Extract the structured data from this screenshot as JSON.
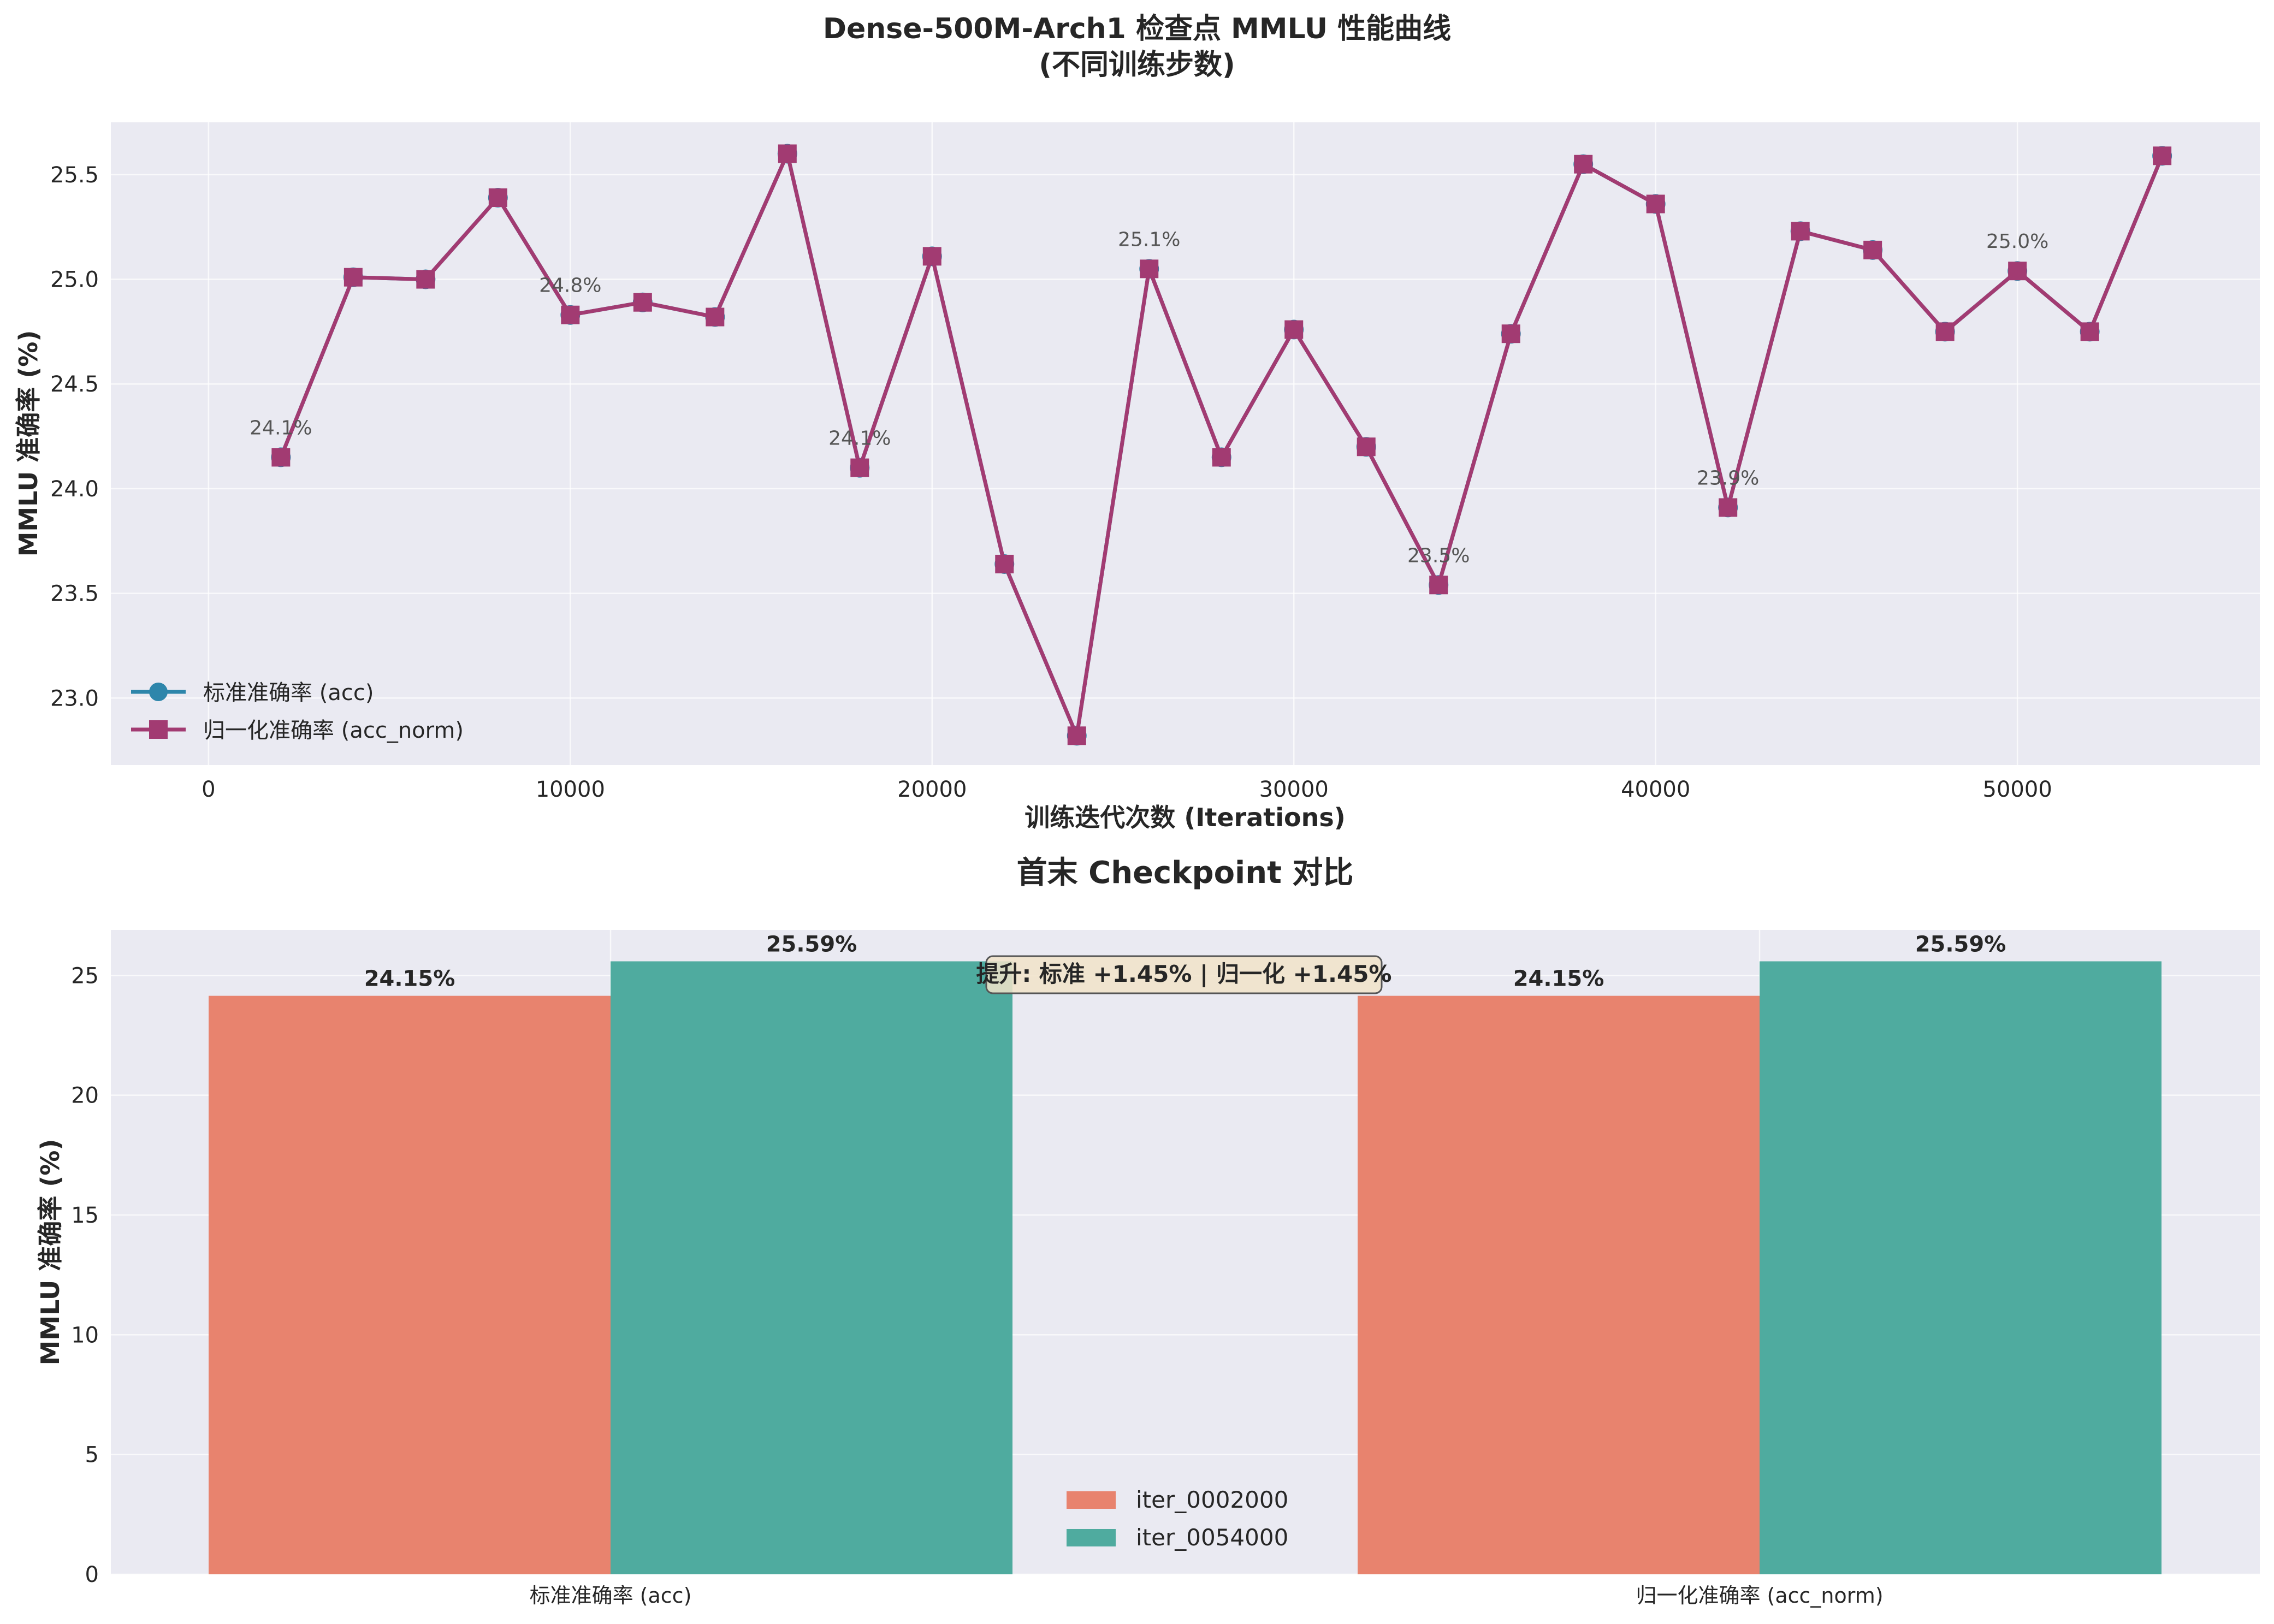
{
  "figure": {
    "title_line1": "Dense-500M-Arch1 检查点 MMLU 性能曲线",
    "title_line2": "(不同训练步数)"
  },
  "colors": {
    "acc_line": "#2e86ab",
    "acc_norm_line": "#a23b72",
    "bar_first": "#e8836e",
    "bar_last": "#4fab9f",
    "axes_bg": "#eaeaf2",
    "grid": "#ffffff",
    "text": "#262626",
    "annotation_text": "#555555",
    "note_box_fill": "#f1e3c9"
  },
  "chart_data": [
    {
      "type": "line",
      "title": "",
      "xlabel": "训练迭代次数 (Iterations)",
      "ylabel": "MMLU 准确率 (%)",
      "xlim": [
        -2700,
        56700
      ],
      "ylim": [
        22.68,
        25.75
      ],
      "xticks": [
        0,
        10000,
        20000,
        30000,
        40000,
        50000
      ],
      "yticks": [
        23.0,
        23.5,
        24.0,
        24.5,
        25.0,
        25.5
      ],
      "ytick_labels": [
        "23.0",
        "23.5",
        "24.0",
        "24.5",
        "25.0",
        "25.5"
      ],
      "grid": true,
      "legend_position": "lower-left",
      "x": [
        2000,
        4000,
        6000,
        8000,
        10000,
        12000,
        14000,
        16000,
        18000,
        20000,
        22000,
        24000,
        26000,
        28000,
        30000,
        32000,
        34000,
        36000,
        38000,
        40000,
        42000,
        44000,
        46000,
        48000,
        50000,
        52000,
        54000
      ],
      "series": [
        {
          "name": "标准准确率 (acc)",
          "marker": "circle",
          "values": [
            24.15,
            25.01,
            25.0,
            25.39,
            24.83,
            24.89,
            24.82,
            25.6,
            24.1,
            25.11,
            23.64,
            22.82,
            25.05,
            24.15,
            24.76,
            24.2,
            23.54,
            24.74,
            25.55,
            25.36,
            23.91,
            25.23,
            25.14,
            24.75,
            25.04,
            24.75,
            25.59
          ]
        },
        {
          "name": "归一化准确率 (acc_norm)",
          "marker": "square",
          "values": [
            24.15,
            25.01,
            25.0,
            25.39,
            24.83,
            24.89,
            24.82,
            25.6,
            24.1,
            25.11,
            23.64,
            22.82,
            25.05,
            24.15,
            24.76,
            24.2,
            23.54,
            24.74,
            25.55,
            25.36,
            23.91,
            25.23,
            25.14,
            24.75,
            25.04,
            24.75,
            25.59
          ]
        }
      ],
      "annotations": [
        {
          "x": 2000,
          "y": 24.15,
          "text": "24.1%"
        },
        {
          "x": 10000,
          "y": 24.83,
          "text": "24.8%"
        },
        {
          "x": 18000,
          "y": 24.1,
          "text": "24.1%"
        },
        {
          "x": 26000,
          "y": 25.05,
          "text": "25.1%"
        },
        {
          "x": 34000,
          "y": 23.54,
          "text": "23.5%"
        },
        {
          "x": 42000,
          "y": 23.91,
          "text": "23.9%"
        },
        {
          "x": 50000,
          "y": 25.04,
          "text": "25.0%"
        }
      ]
    },
    {
      "type": "bar",
      "title": "首末 Checkpoint 对比",
      "xlabel": "",
      "ylabel": "MMLU 准确率 (%)",
      "ylim": [
        0,
        26.9
      ],
      "yticks": [
        0,
        5,
        10,
        15,
        20,
        25
      ],
      "grid": true,
      "legend_position": "lower-center",
      "categories": [
        "标准准确率 (acc)",
        "归一化准确率 (acc_norm)"
      ],
      "series": [
        {
          "name": "iter_0002000",
          "values": [
            24.15,
            24.15
          ],
          "labels": [
            "24.15%",
            "24.15%"
          ]
        },
        {
          "name": "iter_0054000",
          "values": [
            25.59,
            25.59
          ],
          "labels": [
            "25.59%",
            "25.59%"
          ]
        }
      ],
      "annotation": "提升: 标准 +1.45% | 归一化 +1.45%"
    }
  ]
}
